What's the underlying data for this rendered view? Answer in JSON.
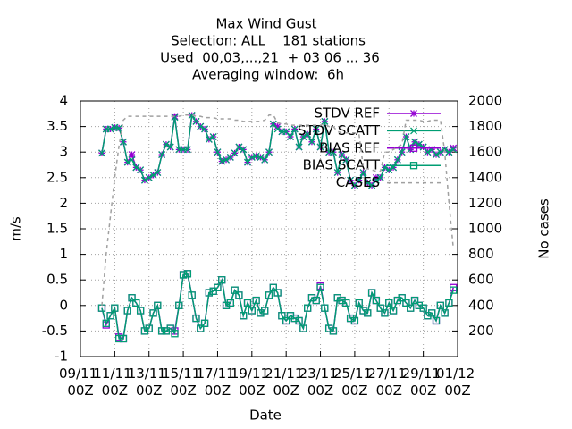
{
  "chart_data": {
    "type": "line",
    "title": "Max Wind Gust",
    "subtitle": [
      "Selection: ALL    181 stations",
      "Used  00,03,...,21  + 03 06 ... 36",
      "Averaging window:  6h"
    ],
    "xlabel": "Date",
    "ylabel": "m/s",
    "y2label": "No cases",
    "xlim": [
      "09/11 00Z",
      "01/12 00Z"
    ],
    "xticks": [
      "09/11 00Z",
      "11/11 00Z",
      "13/11 00Z",
      "15/11 00Z",
      "17/11 00Z",
      "19/11 00Z",
      "21/11 00Z",
      "23/11 00Z",
      "25/11 00Z",
      "27/11 00Z",
      "29/11 00Z",
      "01/12 00Z"
    ],
    "ylim": [
      -1,
      4
    ],
    "yticks": [
      -1,
      -0.5,
      0,
      0.5,
      1,
      1.5,
      2,
      2.5,
      3,
      3.5,
      4
    ],
    "y2lim": [
      0,
      2000
    ],
    "y2ticks": [
      200,
      400,
      600,
      800,
      1000,
      1200,
      1400,
      1600,
      1800,
      2000
    ],
    "grid": true,
    "legend": "top-right",
    "x": [
      "10/11 06Z",
      "10/11 12Z",
      "10/11 18Z",
      "11/11 00Z",
      "11/11 06Z",
      "11/11 12Z",
      "11/11 18Z",
      "12/11 00Z",
      "12/11 06Z",
      "12/11 12Z",
      "12/11 18Z",
      "13/11 00Z",
      "13/11 06Z",
      "13/11 12Z",
      "13/11 18Z",
      "14/11 00Z",
      "14/11 06Z",
      "14/11 12Z",
      "14/11 18Z",
      "15/11 00Z",
      "15/11 06Z",
      "15/11 12Z",
      "15/11 18Z",
      "16/11 00Z",
      "16/11 06Z",
      "16/11 12Z",
      "16/11 18Z",
      "17/11 00Z",
      "17/11 06Z",
      "17/11 12Z",
      "17/11 18Z",
      "18/11 00Z",
      "18/11 06Z",
      "18/11 12Z",
      "18/11 18Z",
      "19/11 00Z",
      "19/11 06Z",
      "19/11 12Z",
      "19/11 18Z",
      "20/11 00Z",
      "20/11 06Z",
      "20/11 12Z",
      "20/11 18Z",
      "21/11 00Z",
      "21/11 06Z",
      "21/11 12Z",
      "21/11 18Z",
      "22/11 00Z",
      "22/11 06Z",
      "22/11 12Z",
      "22/11 18Z",
      "23/11 00Z",
      "23/11 06Z",
      "23/11 12Z",
      "23/11 18Z",
      "24/11 00Z",
      "24/11 06Z",
      "24/11 12Z",
      "24/11 18Z",
      "25/11 00Z",
      "25/11 06Z",
      "25/11 12Z",
      "25/11 18Z",
      "26/11 00Z",
      "26/11 06Z",
      "26/11 12Z",
      "26/11 18Z",
      "27/11 00Z",
      "27/11 06Z",
      "27/11 12Z",
      "27/11 18Z",
      "28/11 00Z",
      "28/11 06Z",
      "28/11 12Z",
      "28/11 18Z",
      "29/11 00Z",
      "29/11 06Z",
      "29/11 12Z",
      "29/11 18Z",
      "30/11 00Z",
      "30/11 06Z",
      "30/11 12Z",
      "30/11 18Z"
    ],
    "series": [
      {
        "name": "STDV REF",
        "color": "#9400d3",
        "marker": "asterisk",
        "axis": "y",
        "values": [
          2.98,
          3.45,
          3.45,
          3.48,
          3.47,
          3.2,
          2.8,
          2.95,
          2.7,
          2.65,
          2.45,
          2.5,
          2.55,
          2.6,
          2.95,
          3.15,
          3.1,
          3.7,
          3.05,
          3.05,
          3.05,
          3.72,
          3.6,
          3.5,
          3.45,
          3.25,
          3.3,
          3.0,
          2.82,
          2.85,
          2.9,
          2.98,
          3.1,
          3.05,
          2.8,
          2.9,
          2.92,
          2.9,
          2.85,
          3.0,
          3.55,
          3.5,
          3.4,
          3.4,
          3.3,
          3.45,
          3.1,
          3.3,
          3.35,
          3.2,
          3.45,
          3.1,
          3.6,
          3.0,
          3.0,
          2.6,
          2.95,
          2.85,
          2.45,
          2.35,
          2.45,
          2.6,
          2.4,
          2.35,
          2.5,
          2.5,
          2.7,
          2.65,
          2.7,
          2.85,
          3.0,
          3.3,
          3.05,
          3.2,
          3.15,
          3.1,
          3.0,
          3.05,
          2.95,
          3.0,
          3.05,
          3.0,
          3.08
        ]
      },
      {
        "name": "STDV SCATT",
        "color": "#009e73",
        "marker": "cross",
        "axis": "y",
        "values": [
          2.98,
          3.45,
          3.45,
          3.48,
          3.47,
          3.2,
          2.8,
          2.85,
          2.7,
          2.65,
          2.45,
          2.5,
          2.55,
          2.6,
          2.95,
          3.15,
          3.1,
          3.68,
          3.05,
          3.05,
          3.05,
          3.72,
          3.6,
          3.5,
          3.45,
          3.25,
          3.3,
          3.0,
          2.82,
          2.85,
          2.9,
          2.98,
          3.1,
          3.05,
          2.8,
          2.9,
          2.92,
          2.9,
          2.85,
          3.0,
          3.55,
          3.45,
          3.4,
          3.4,
          3.3,
          3.45,
          3.1,
          3.3,
          3.35,
          3.2,
          3.45,
          3.1,
          3.6,
          3.0,
          3.0,
          2.6,
          2.95,
          2.85,
          2.45,
          2.35,
          2.45,
          2.6,
          2.4,
          2.35,
          2.45,
          2.5,
          2.7,
          2.65,
          2.7,
          2.85,
          3.0,
          3.3,
          3.05,
          3.2,
          3.15,
          3.1,
          3.0,
          3.05,
          2.95,
          3.0,
          3.05,
          3.0,
          3.05
        ]
      },
      {
        "name": "BIAS REF",
        "color": "#9400d3",
        "marker": "square",
        "axis": "y",
        "values": [
          -0.05,
          -0.38,
          -0.2,
          -0.05,
          -0.62,
          -0.65,
          -0.1,
          0.15,
          0.05,
          -0.1,
          -0.5,
          -0.45,
          -0.15,
          0.0,
          -0.5,
          -0.5,
          -0.45,
          -0.5,
          0.0,
          0.6,
          0.62,
          0.2,
          -0.25,
          -0.45,
          -0.35,
          0.25,
          0.28,
          0.35,
          0.5,
          0.0,
          0.05,
          0.3,
          0.2,
          -0.2,
          0.05,
          -0.1,
          0.1,
          -0.15,
          -0.1,
          0.2,
          0.35,
          0.25,
          -0.2,
          -0.3,
          -0.2,
          -0.25,
          -0.3,
          -0.45,
          -0.05,
          0.15,
          0.1,
          0.38,
          -0.05,
          -0.45,
          -0.5,
          0.15,
          0.1,
          0.05,
          -0.25,
          -0.3,
          0.05,
          -0.1,
          -0.15,
          0.25,
          0.1,
          -0.05,
          -0.15,
          0.05,
          -0.1,
          0.1,
          0.15,
          0.05,
          -0.05,
          0.1,
          0.0,
          -0.05,
          -0.2,
          -0.15,
          -0.3,
          0.0,
          -0.15,
          0.05,
          0.35
        ]
      },
      {
        "name": "BIAS SCATT",
        "color": "#009e73",
        "marker": "square",
        "axis": "y",
        "values": [
          -0.05,
          -0.35,
          -0.2,
          -0.05,
          -0.65,
          -0.65,
          -0.1,
          0.15,
          0.05,
          -0.1,
          -0.5,
          -0.45,
          -0.15,
          0.0,
          -0.5,
          -0.5,
          -0.45,
          -0.55,
          0.0,
          0.6,
          0.62,
          0.2,
          -0.25,
          -0.45,
          -0.35,
          0.25,
          0.28,
          0.35,
          0.5,
          0.0,
          0.05,
          0.3,
          0.2,
          -0.2,
          0.05,
          -0.1,
          0.1,
          -0.15,
          -0.1,
          0.2,
          0.35,
          0.25,
          -0.2,
          -0.3,
          -0.2,
          -0.25,
          -0.3,
          -0.45,
          -0.05,
          0.15,
          0.1,
          0.35,
          -0.05,
          -0.45,
          -0.5,
          0.15,
          0.1,
          0.05,
          -0.25,
          -0.3,
          0.05,
          -0.1,
          -0.15,
          0.25,
          0.1,
          -0.05,
          -0.15,
          0.05,
          -0.1,
          0.1,
          0.15,
          0.05,
          -0.05,
          0.1,
          0.0,
          -0.05,
          -0.2,
          -0.15,
          -0.3,
          0.0,
          -0.15,
          0.05,
          0.3
        ]
      },
      {
        "name": "CASES",
        "color": "#a0a0a0",
        "marker": "none",
        "dashed": true,
        "axis": "y2",
        "values": [
          400,
          800,
          1100,
          1400,
          1650,
          1850,
          1880,
          1880,
          1880,
          1880,
          1880,
          1880,
          1880,
          1880,
          1880,
          1880,
          1880,
          1880,
          1880,
          1890,
          1890,
          1890,
          1880,
          1880,
          1870,
          1870,
          1870,
          1860,
          1860,
          1860,
          1860,
          1850,
          1850,
          1840,
          1840,
          1840,
          1840,
          1840,
          1850,
          1890,
          1890,
          1830,
          1820,
          1820,
          1810,
          1810,
          1810,
          1810,
          1810,
          1810,
          1810,
          1810,
          1820,
          1800,
          1800,
          1760,
          1750,
          1750,
          1750,
          1750,
          1740,
          1480,
          1470,
          1460,
          1450,
          1450,
          1600,
          1600,
          1620,
          1640,
          1660,
          1850,
          1850,
          1850,
          1850,
          1840,
          1840,
          1850,
          1850,
          1850,
          1600,
          1200,
          850
        ]
      }
    ]
  }
}
